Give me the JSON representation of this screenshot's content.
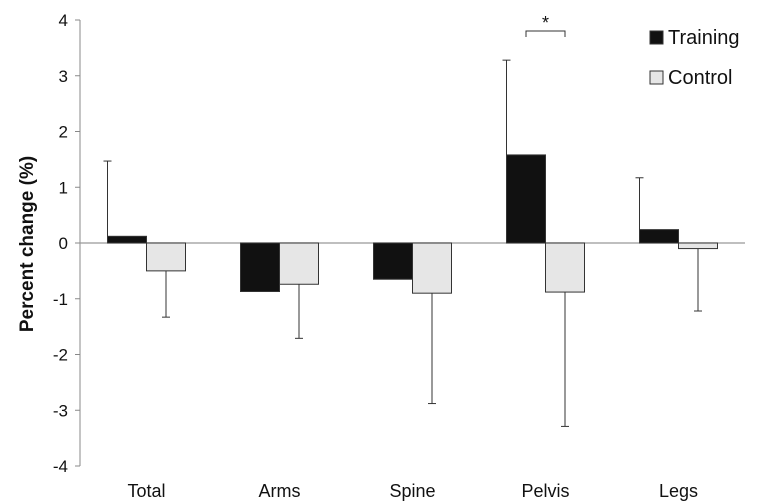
{
  "chart_data": {
    "type": "bar",
    "title": "",
    "xlabel": "",
    "ylabel": "Percent change (%)",
    "ylim": [
      -4,
      4
    ],
    "yticks": [
      -4,
      -3,
      -2,
      -1,
      0,
      1,
      2,
      3,
      4
    ],
    "categories": [
      "Total",
      "Arms",
      "Spine",
      "Pelvis",
      "Legs"
    ],
    "series": [
      {
        "name": "Training",
        "color": "#111111",
        "values": [
          0.12,
          -0.87,
          -0.65,
          1.58,
          0.24
        ],
        "error": [
          1.35,
          null,
          null,
          1.7,
          0.93
        ]
      },
      {
        "name": "Control",
        "color": "#e6e6e6",
        "values": [
          -0.5,
          -0.74,
          -0.9,
          -0.88,
          -0.1
        ],
        "error": [
          0.83,
          0.97,
          1.98,
          2.41,
          1.12
        ]
      }
    ],
    "legend_position": "top-right",
    "grid": false,
    "annotations": [
      {
        "text": "*",
        "category": "Pelvis",
        "type": "significance-bracket"
      }
    ]
  }
}
